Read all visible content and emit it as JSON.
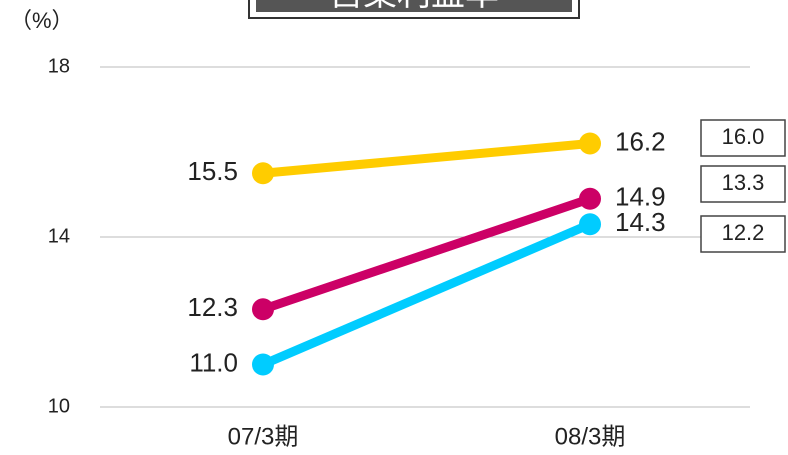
{
  "chart_data": {
    "type": "line",
    "title": "営業利益率",
    "y_label": "（%）",
    "categories": [
      "07/3期",
      "08/3期"
    ],
    "ylim": [
      10,
      18
    ],
    "yticks": [
      10,
      14,
      18
    ],
    "grid": true,
    "series": [
      {
        "color": "#ffcc00",
        "values": [
          15.5,
          16.2
        ],
        "value_labels": [
          "15.5",
          "16.2"
        ],
        "target": {
          "value": 16.0,
          "label": "16.0"
        }
      },
      {
        "color": "#cc0066",
        "values": [
          12.3,
          14.9
        ],
        "value_labels": [
          "12.3",
          "14.9"
        ],
        "target": {
          "value": 13.3,
          "label": "13.3"
        }
      },
      {
        "color": "#00ccff",
        "values": [
          11.0,
          14.3
        ],
        "value_labels": [
          "11.0",
          "14.3"
        ],
        "target": {
          "value": 12.2,
          "label": "12.2"
        }
      }
    ]
  }
}
